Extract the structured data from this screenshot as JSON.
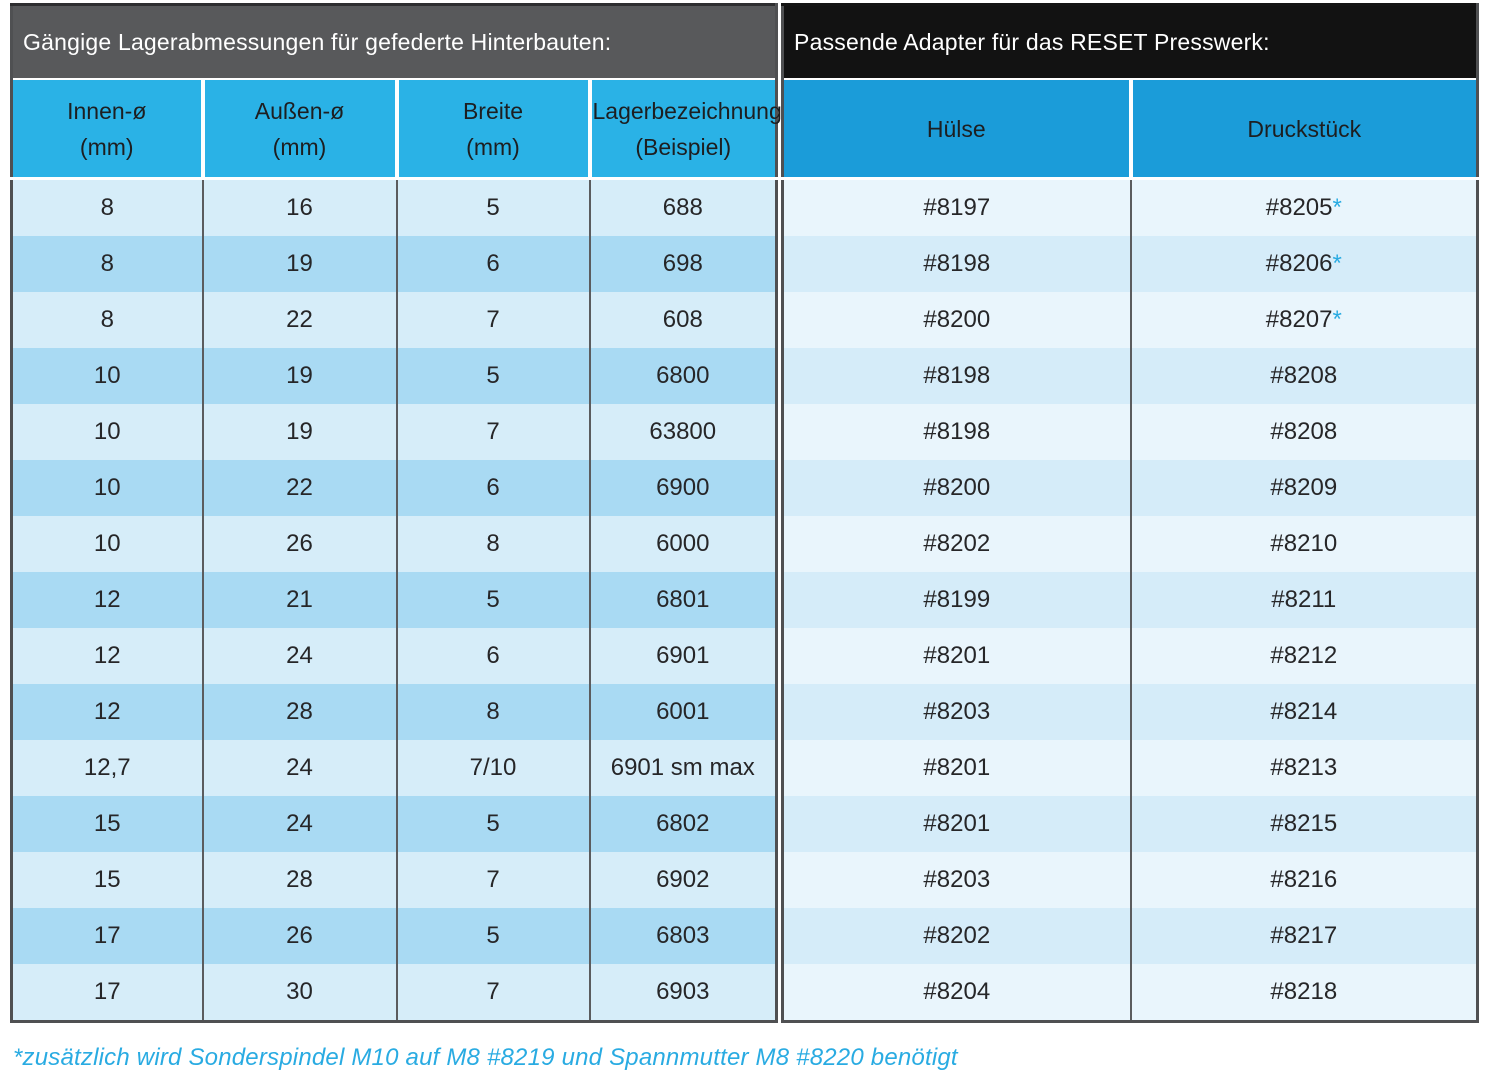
{
  "left_table": {
    "title": "Gängige Lagerabmessungen für gefederte Hinterbauten:",
    "column_keys": [
      "innen-diameter",
      "aussen-diameter",
      "breite",
      "lagerbezeichnung"
    ],
    "columns": [
      {
        "line1": "Innen-ø",
        "line2": "(mm)"
      },
      {
        "line1": "Außen-ø",
        "line2": "(mm)"
      },
      {
        "line1": "Breite",
        "line2": "(mm)"
      },
      {
        "line1": "Lagerbezeichnung",
        "line2": "(Beispiel)"
      }
    ],
    "rows": [
      [
        "8",
        "16",
        "5",
        "688"
      ],
      [
        "8",
        "19",
        "6",
        "698"
      ],
      [
        "8",
        "22",
        "7",
        "608"
      ],
      [
        "10",
        "19",
        "5",
        "6800"
      ],
      [
        "10",
        "19",
        "7",
        "63800"
      ],
      [
        "10",
        "22",
        "6",
        "6900"
      ],
      [
        "10",
        "26",
        "8",
        "6000"
      ],
      [
        "12",
        "21",
        "5",
        "6801"
      ],
      [
        "12",
        "24",
        "6",
        "6901"
      ],
      [
        "12",
        "28",
        "8",
        "6001"
      ],
      [
        "12,7",
        "24",
        "7/10",
        "6901 sm max"
      ],
      [
        "15",
        "24",
        "5",
        "6802"
      ],
      [
        "15",
        "28",
        "7",
        "6902"
      ],
      [
        "17",
        "26",
        "5",
        "6803"
      ],
      [
        "17",
        "30",
        "7",
        "6903"
      ]
    ]
  },
  "right_table": {
    "title": "Passende Adapter für das RESET Presswerk:",
    "columns": [
      "Hülse",
      "Druckstück"
    ],
    "rows": [
      {
        "huelse": "#8197",
        "druckstueck": "#8205",
        "star": true
      },
      {
        "huelse": "#8198",
        "druckstueck": "#8206",
        "star": true
      },
      {
        "huelse": "#8200",
        "druckstueck": "#8207",
        "star": true
      },
      {
        "huelse": "#8198",
        "druckstueck": "#8208",
        "star": false
      },
      {
        "huelse": "#8198",
        "druckstueck": "#8208",
        "star": false
      },
      {
        "huelse": "#8200",
        "druckstueck": "#8209",
        "star": false
      },
      {
        "huelse": "#8202",
        "druckstueck": "#8210",
        "star": false
      },
      {
        "huelse": "#8199",
        "druckstueck": "#8211",
        "star": false
      },
      {
        "huelse": "#8201",
        "druckstueck": "#8212",
        "star": false
      },
      {
        "huelse": "#8203",
        "druckstueck": "#8214",
        "star": false
      },
      {
        "huelse": "#8201",
        "druckstueck": "#8213",
        "star": false
      },
      {
        "huelse": "#8201",
        "druckstueck": "#8215",
        "star": false
      },
      {
        "huelse": "#8203",
        "druckstueck": "#8216",
        "star": false
      },
      {
        "huelse": "#8202",
        "druckstueck": "#8217",
        "star": false
      },
      {
        "huelse": "#8204",
        "druckstueck": "#8218",
        "star": false
      }
    ]
  },
  "footnote_marker": "*",
  "footnote": "*zusätzlich wird Sonderspindel M10 auf M8 #8219 und Spannmutter M8 #8220 benötigt",
  "colors": {
    "accent_cyan": "#29abe2",
    "title_bar_gray": "#58595b",
    "title_bar_black": "#121212",
    "header_cyan_left": "#2ab2e6",
    "header_cyan_right": "#1b9cd9",
    "row_light_left": "#d6edf9",
    "row_dark_left": "#a9daf3",
    "row_light_right": "#e9f5fc",
    "row_dark_right": "#d5ecf9",
    "grid_line": "#5b5c5e",
    "body_text": "#262628"
  }
}
